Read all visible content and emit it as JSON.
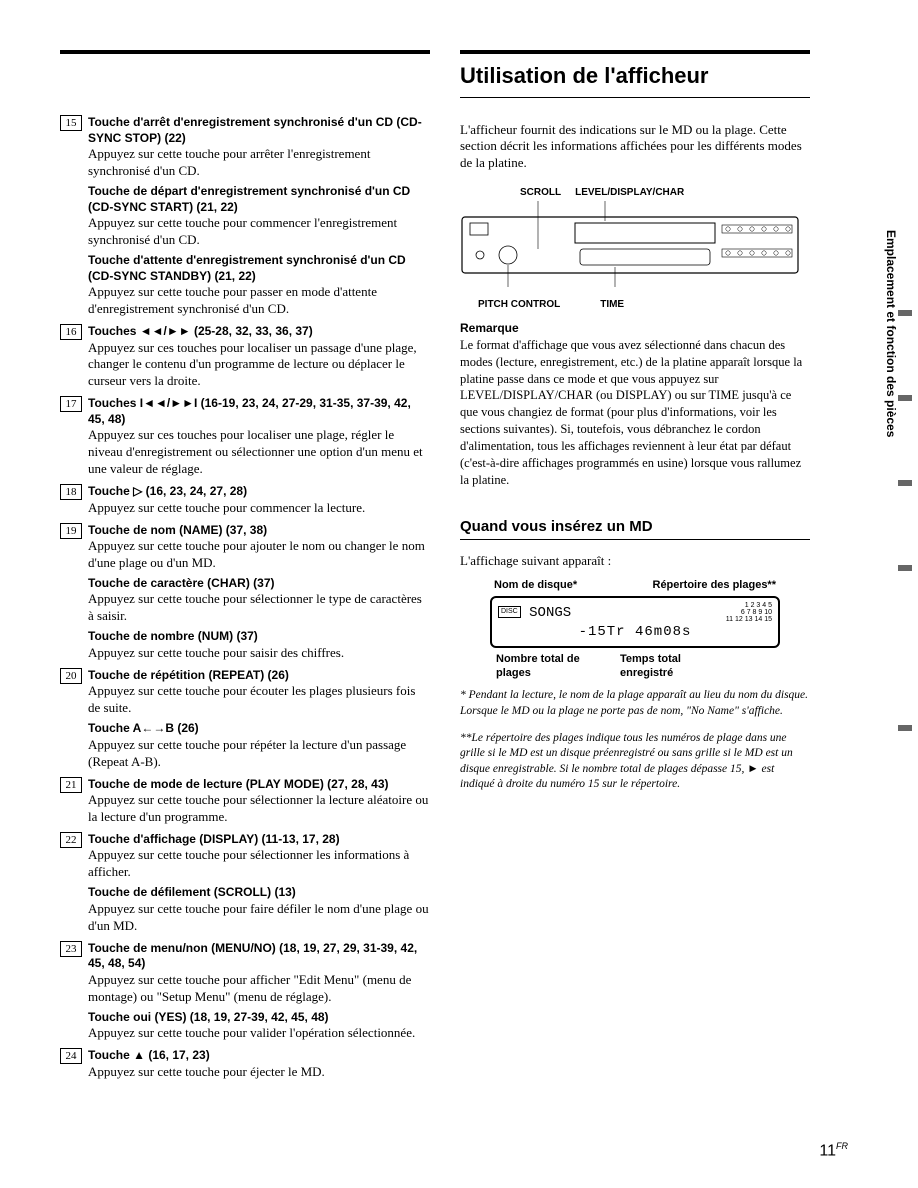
{
  "page_number": "11",
  "page_lang": "FR",
  "side_tab": "Emplacement et fonction des pièces",
  "section_title": "Utilisation de l'afficheur",
  "right_intro": "L'afficheur fournit des indications sur le MD ou la plage. Cette section décrit les informations affichées pour les différents modes de la platine.",
  "left_items": [
    {
      "num": "15",
      "blocks": [
        {
          "title": "Touche d'arrêt d'enregistrement synchronisé d'un CD (CD-SYNC STOP) (22)",
          "desc": "Appuyez sur cette touche pour arrêter l'enregistrement synchronisé d'un CD."
        },
        {
          "title": "Touche de départ d'enregistrement synchronisé d'un CD (CD-SYNC START) (21, 22)",
          "desc": "Appuyez sur cette touche pour commencer l'enregistrement synchronisé d'un CD."
        },
        {
          "title": "Touche d'attente d'enregistrement synchronisé d'un CD (CD-SYNC STANDBY) (21, 22)",
          "desc": "Appuyez sur cette touche pour passer en mode d'attente d'enregistrement synchronisé d'un CD."
        }
      ]
    },
    {
      "num": "16",
      "blocks": [
        {
          "title": "Touches ◄◄/►► (25-28, 32, 33, 36, 37)",
          "desc": "Appuyez sur ces touches pour localiser un passage d'une plage, changer le contenu d'un programme de lecture ou déplacer le curseur vers la droite."
        }
      ]
    },
    {
      "num": "17",
      "blocks": [
        {
          "title": "Touches I◄◄/►►I (16-19, 23, 24, 27-29, 31-35, 37-39, 42, 45, 48)",
          "desc": "Appuyez sur ces touches pour localiser une plage, régler le niveau d'enregistrement ou sélectionner une option d'un menu et une valeur de réglage."
        }
      ]
    },
    {
      "num": "18",
      "blocks": [
        {
          "title": "Touche ▷ (16, 23, 24, 27, 28)",
          "desc": "Appuyez sur cette touche pour commencer la lecture."
        }
      ]
    },
    {
      "num": "19",
      "blocks": [
        {
          "title": "Touche de nom (NAME) (37, 38)",
          "desc": "Appuyez sur cette touche pour ajouter le nom ou changer le nom d'une plage ou d'un MD."
        },
        {
          "title": "Touche de caractère (CHAR) (37)",
          "desc": "Appuyez sur cette touche pour sélectionner le type de caractères à saisir."
        },
        {
          "title": "Touche de nombre (NUM) (37)",
          "desc": "Appuyez sur cette touche pour saisir des chiffres."
        }
      ]
    },
    {
      "num": "20",
      "blocks": [
        {
          "title": "Touche de répétition (REPEAT) (26)",
          "desc": "Appuyez sur cette touche pour écouter les plages plusieurs fois de suite."
        },
        {
          "title": "Touche A←→B (26)",
          "desc": "Appuyez sur cette touche pour répéter la lecture d'un passage (Repeat A-B)."
        }
      ]
    },
    {
      "num": "21",
      "blocks": [
        {
          "title": "Touche de mode de lecture (PLAY MODE) (27, 28, 43)",
          "desc": "Appuyez sur cette touche pour sélectionner la lecture aléatoire ou la lecture d'un programme."
        }
      ]
    },
    {
      "num": "22",
      "blocks": [
        {
          "title": "Touche d'affichage (DISPLAY) (11-13, 17, 28)",
          "desc": "Appuyez sur cette touche pour sélectionner les informations à afficher."
        },
        {
          "title": "Touche de défilement (SCROLL) (13)",
          "desc": "Appuyez sur cette touche pour faire défiler le nom d'une plage ou d'un MD."
        }
      ]
    },
    {
      "num": "23",
      "blocks": [
        {
          "title": "Touche de menu/non (MENU/NO) (18, 19, 27, 29, 31-39, 42, 45, 48, 54)",
          "desc": "Appuyez sur cette touche pour afficher \"Edit Menu\" (menu de montage) ou \"Setup Menu\" (menu de réglage)."
        },
        {
          "title": "Touche oui (YES) (18, 19, 27-39, 42, 45, 48)",
          "desc": "Appuyez sur cette touche pour valider l'opération sélectionnée."
        }
      ]
    },
    {
      "num": "24",
      "blocks": [
        {
          "title": "Touche ▲ (16, 17, 23)",
          "desc": "Appuyez sur cette touche pour éjecter le MD."
        }
      ]
    }
  ],
  "device_labels": {
    "top": [
      "SCROLL",
      "LEVEL/DISPLAY/CHAR"
    ],
    "bottom": [
      "PITCH CONTROL",
      "TIME"
    ]
  },
  "remarque": {
    "title": "Remarque",
    "body": "Le format d'affichage que vous avez sélectionné dans chacun des modes (lecture, enregistrement, etc.) de la platine apparaît lorsque la platine passe dans ce mode et que vous appuyez sur LEVEL/DISPLAY/CHAR (ou DISPLAY) ou sur TIME jusqu'à ce que vous changiez de format (pour plus d'informations, voir les sections suivantes). Si, toutefois, vous débranchez le cordon d'alimentation, tous les affichages reviennent à leur état par défaut (c'est-à-dire affichages programmés en usine) lorsque vous rallumez la platine."
  },
  "subsection_title": "Quand vous insérez un MD",
  "subsection_intro": "L'affichage suivant apparaît :",
  "display": {
    "top_labels": [
      "Nom de disque*",
      "Répertoire des plages**"
    ],
    "line1_icon": "DISC",
    "line1_text": "SONGS",
    "track_grid": [
      "1 2 3 4 5",
      "6 7 8 9 10",
      "11 12 13 14 15"
    ],
    "line2": "-15Tr 46m08s",
    "bottom_labels": [
      "Nombre total de plages",
      "Temps total enregistré"
    ]
  },
  "footnotes": [
    "* Pendant la lecture, le nom de la plage apparaît au lieu du nom du disque. Lorsque le MD ou la plage ne porte pas de nom, \"No Name\" s'affiche.",
    "**Le répertoire des plages indique tous les numéros de plage dans une grille si le MD est un disque préenregistré ou sans grille si le MD est un disque enregistrable. Si le nombre total de plages dépasse 15, ► est indiqué à droite du numéro 15 sur le répertoire."
  ]
}
